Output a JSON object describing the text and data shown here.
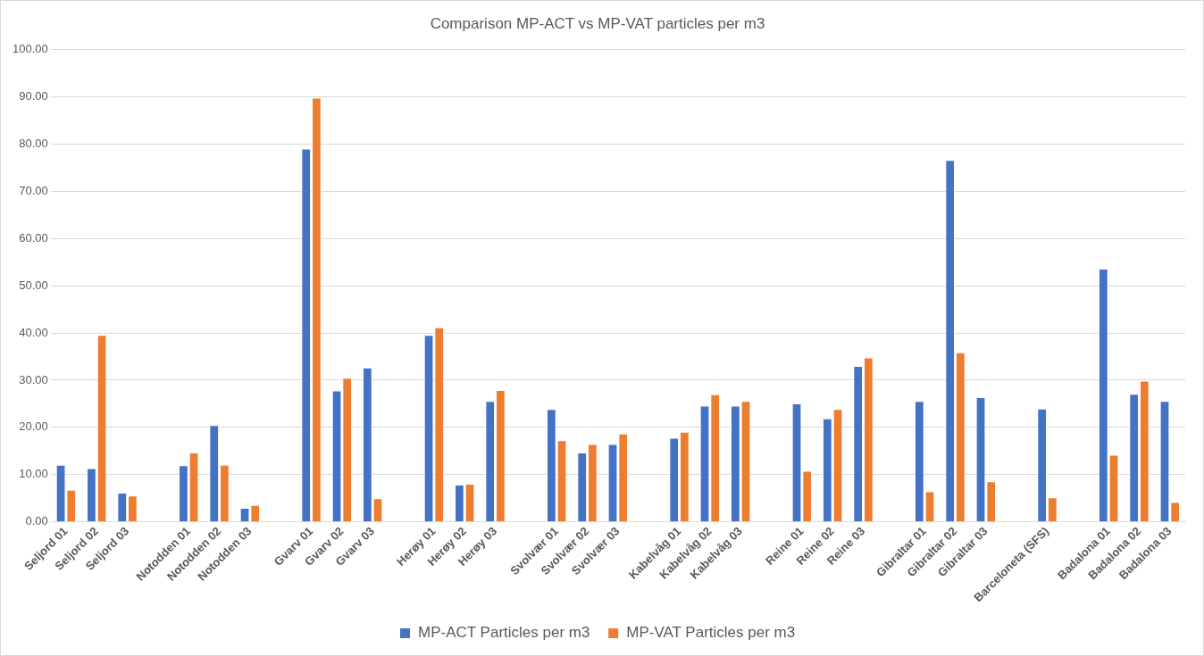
{
  "chart_data": {
    "type": "bar",
    "title": "Comparison MP-ACT vs MP-VAT particles per m3",
    "categories": [
      "Seljord 01",
      "Seljord 02",
      "Seljord 03",
      null,
      "Notodden 01",
      "Notodden 02",
      "Notodden 03",
      null,
      "Gvarv 01",
      "Gvarv 02",
      "Gvarv 03",
      null,
      "Herøy 01",
      "Herøy 02",
      "Herøy 03",
      null,
      "Svolvær 01",
      "Svolvær 02",
      "Svolvær 03",
      null,
      "Kabelvåg 01",
      "Kabelvåg 02",
      "Kabelvåg 03",
      null,
      "Reine 01",
      "Reine 02",
      "Reine 03",
      null,
      "Gibraltar 01",
      "Gibraltar 02",
      "Gibraltar 03",
      null,
      "Barceloneta (SFS)",
      null,
      "Badalona 01",
      "Badalona 02",
      "Badalona 03"
    ],
    "series": [
      {
        "name": "MP-ACT Particles per m3",
        "color": "#4472c4",
        "values": [
          12.1,
          11.4,
          6.2,
          null,
          12.0,
          20.5,
          3.0,
          null,
          79.0,
          27.8,
          32.7,
          null,
          39.6,
          7.9,
          25.6,
          null,
          23.9,
          14.7,
          16.5,
          null,
          17.8,
          24.6,
          24.6,
          null,
          25.1,
          21.9,
          33.0,
          null,
          25.6,
          76.6,
          26.4,
          null,
          24.0,
          null,
          53.6,
          27.1,
          25.6
        ]
      },
      {
        "name": "MP-VAT Particles per m3",
        "color": "#ed7d31",
        "values": [
          6.8,
          39.6,
          5.6,
          null,
          14.7,
          12.1,
          3.6,
          null,
          89.8,
          30.5,
          5.0,
          null,
          41.2,
          8.1,
          27.9,
          null,
          17.3,
          16.5,
          18.7,
          null,
          19.1,
          27.0,
          25.6,
          null,
          10.8,
          23.9,
          34.8,
          null,
          6.5,
          35.9,
          8.6,
          null,
          5.2,
          null,
          14.2,
          29.9,
          4.2
        ]
      }
    ],
    "ylim": [
      0,
      100
    ],
    "yticks": [
      {
        "value": 0,
        "label": "0.00"
      },
      {
        "value": 10,
        "label": "10.00"
      },
      {
        "value": 20,
        "label": "20.00"
      },
      {
        "value": 30,
        "label": "30.00"
      },
      {
        "value": 40,
        "label": "40.00"
      },
      {
        "value": 50,
        "label": "50.00"
      },
      {
        "value": 60,
        "label": "60.00"
      },
      {
        "value": 70,
        "label": "70.00"
      },
      {
        "value": 80,
        "label": "80.00"
      },
      {
        "value": 90,
        "label": "90.00"
      },
      {
        "value": 100,
        "label": "100.00"
      }
    ],
    "grid": "y",
    "legend": "bottom"
  }
}
